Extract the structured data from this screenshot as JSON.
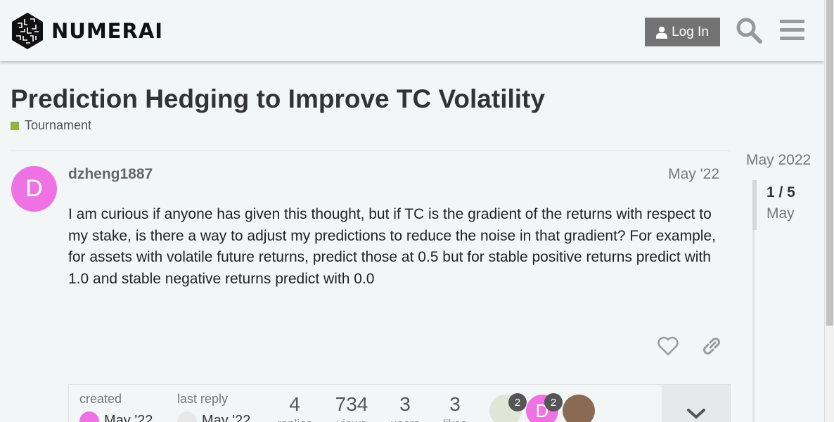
{
  "header": {
    "brand": "NUMERAI",
    "login_label": "Log In",
    "icons": [
      "user-icon",
      "search-icon",
      "hamburger-menu-icon"
    ]
  },
  "topic": {
    "title": "Prediction Hedging to Improve TC Volatility",
    "category": "Tournament",
    "category_color": "#8db63c"
  },
  "post": {
    "avatar_letter": "D",
    "avatar_color": "#ef72e5",
    "username": "dzheng1887",
    "date": "May '22",
    "body": "I am curious if anyone has given this thought, but if TC is the gradient of the returns with respect to my stake, is there a way to adjust my predictions to reduce the noise in that gradient? For example, for assets with volatile future returns, predict those at 0.5 but for stable positive returns predict with 1.0 and stable negative returns predict with 0.0"
  },
  "topic_map": {
    "created_label": "created",
    "created_date": "May '22",
    "last_reply_label": "last reply",
    "last_reply_date": "May '22",
    "replies_count": "4",
    "replies_label": "replies",
    "views_count": "734",
    "views_label": "views",
    "users_count": "3",
    "users_label": "users",
    "likes_count": "3",
    "likes_label": "likes",
    "participants": [
      {
        "badge": "2"
      },
      {
        "letter": "D",
        "badge": "2"
      },
      {}
    ]
  },
  "timeline": {
    "top_date": "May 2022",
    "position": "1 / 5",
    "current_date": "May"
  }
}
